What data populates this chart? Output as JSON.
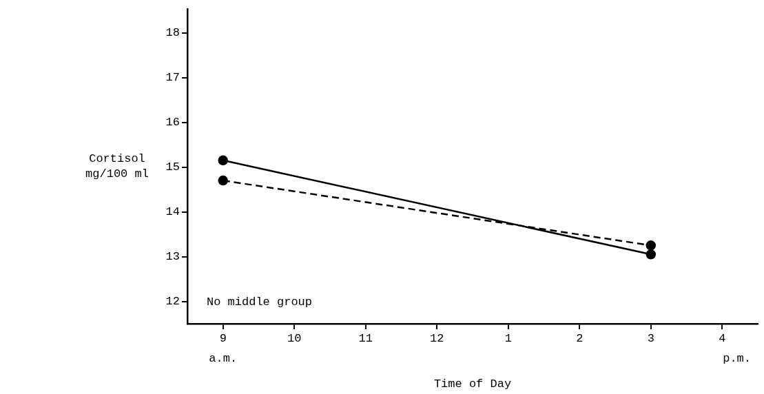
{
  "chart_data": {
    "type": "line",
    "xlabel": "Time of Day",
    "ylabel": "Cortisol\nmg/100 ml",
    "categories": [
      "9",
      "10",
      "11",
      "12",
      "1",
      "2",
      "3",
      "4"
    ],
    "series": [
      {
        "color": "#000000",
        "x": [
          "9",
          "3"
        ],
        "values": [
          15.15,
          13.05
        ],
        "line_style": "solid"
      },
      {
        "color": "#000000",
        "x": [
          "9",
          "3"
        ],
        "values": [
          14.7,
          13.25
        ],
        "line_style": "dashed"
      }
    ],
    "ylim": [
      11.5,
      18.53
    ],
    "yticks": [
      12,
      13,
      14,
      15,
      16,
      17,
      18
    ],
    "grid": false,
    "legend": false,
    "marker": "circle",
    "annotations": [
      "No middle group",
      "a.m.",
      "p.m."
    ]
  }
}
